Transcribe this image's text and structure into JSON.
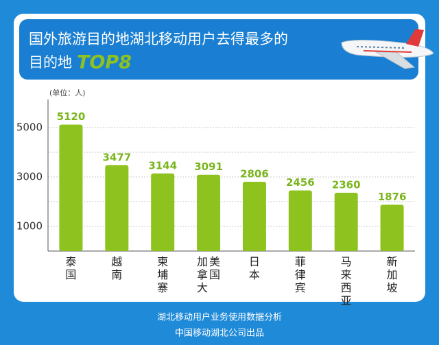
{
  "chart_data": {
    "type": "bar",
    "title_line1": "国外旅游目的地湖北移动用户去得最多的",
    "title_line2": "目的地",
    "title_highlight": "TOP8",
    "unit_label": "(单位：人)",
    "categories": [
      "泰国",
      "越南",
      "柬埔寨",
      "加拿大 美国",
      "日本",
      "菲律宾",
      "马来西亚",
      "新加坡"
    ],
    "values": [
      5120,
      3477,
      3144,
      3091,
      2806,
      2456,
      2360,
      1876
    ],
    "color": "#8dc21f",
    "ylim": [
      0,
      6000
    ],
    "yticks": [
      1000,
      3000,
      5000
    ],
    "grid_yticks": [
      1000,
      2000,
      3000,
      4000,
      5000
    ],
    "grid": true,
    "footer_line1": "湖北移动用户业务使用数据分析",
    "footer_line2": "中国移动湖北公司出品"
  }
}
